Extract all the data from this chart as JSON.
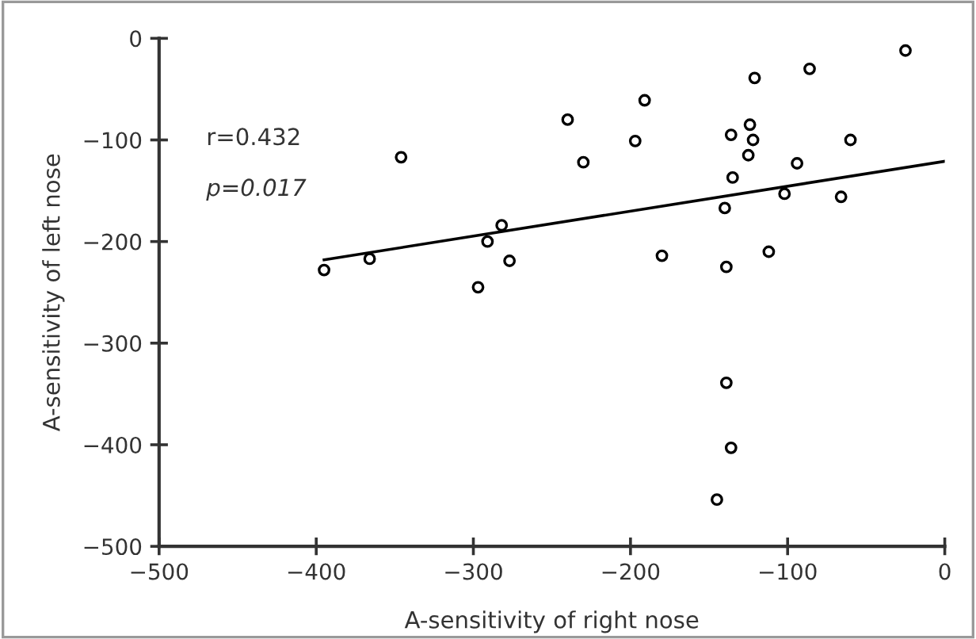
{
  "chart_data": {
    "type": "scatter",
    "xlabel": "A-sensitivity of right nose",
    "ylabel": "A-sensitivity of left nose",
    "xlim": [
      -500,
      0
    ],
    "ylim": [
      -500,
      0
    ],
    "xticks": [
      -500,
      -400,
      -300,
      -200,
      -100,
      0
    ],
    "yticks": [
      -500,
      -400,
      -300,
      -200,
      -100,
      0
    ],
    "grid": false,
    "legend": false,
    "marker": "circle",
    "annotations": [
      "r=0.432",
      "p=0.017"
    ],
    "series": [
      {
        "color": "#000000",
        "x": [
          -395,
          -366,
          -346,
          -282,
          -291,
          -277,
          -297,
          -240,
          -230,
          -191,
          -197,
          -180,
          -121,
          -136,
          -124,
          -122,
          -125,
          -135,
          -140,
          -139,
          -112,
          -102,
          -94,
          -86,
          -60,
          -66,
          -25,
          -139,
          -136,
          -145
        ],
        "values": [
          -228,
          -217,
          -117,
          -184,
          -200,
          -219,
          -245,
          -80,
          -122,
          -61,
          -101,
          -214,
          -39,
          -95,
          -85,
          -100,
          -115,
          -137,
          -167,
          -225,
          -210,
          -153,
          -123,
          -30,
          -100,
          -156,
          -12,
          -339,
          -403,
          -454
        ]
      },
      {
        "type": "line",
        "marker": "none",
        "color": "#000000",
        "x": [
          -395,
          0
        ],
        "values": [
          -218,
          -121
        ]
      }
    ]
  }
}
